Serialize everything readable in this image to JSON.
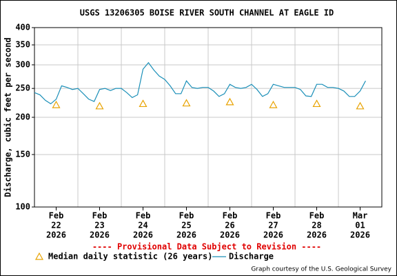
{
  "chart_data": {
    "type": "line",
    "title": "USGS 13206305 BOISE RIVER SOUTH CHANNEL AT EAGLE ID",
    "y_label": "Discharge, cubic feet per second",
    "note": "---- Provisional Data Subject to Revision ----",
    "credit": "Graph courtesy of the U.S. Geological Survey",
    "log_y": true,
    "grid": true,
    "ylim": [
      100,
      400
    ],
    "yticks": [
      100,
      150,
      200,
      250,
      300,
      350,
      400
    ],
    "xlim": [
      "2026-02-21T12:00",
      "2026-03-01T12:00"
    ],
    "xticks": [
      {
        "value": "2026-02-22T00:00",
        "label": [
          "Feb",
          "22",
          "2026"
        ]
      },
      {
        "value": "2026-02-23T00:00",
        "label": [
          "Feb",
          "23",
          "2026"
        ]
      },
      {
        "value": "2026-02-24T00:00",
        "label": [
          "Feb",
          "24",
          "2026"
        ]
      },
      {
        "value": "2026-02-25T00:00",
        "label": [
          "Feb",
          "25",
          "2026"
        ]
      },
      {
        "value": "2026-02-26T00:00",
        "label": [
          "Feb",
          "26",
          "2026"
        ]
      },
      {
        "value": "2026-02-27T00:00",
        "label": [
          "Feb",
          "27",
          "2026"
        ]
      },
      {
        "value": "2026-02-28T00:00",
        "label": [
          "Feb",
          "28",
          "2026"
        ]
      },
      {
        "value": "2026-03-01T00:00",
        "label": [
          "Mar",
          "01",
          "2026"
        ]
      }
    ],
    "xgrid": [
      "2026-02-22T12:00",
      "2026-02-23T12:00",
      "2026-02-24T12:00",
      "2026-02-25T12:00",
      "2026-02-26T12:00",
      "2026-02-27T12:00",
      "2026-02-28T12:00"
    ],
    "series": [
      {
        "name": "Median daily statistic (26 years)",
        "color": "#e8a200",
        "marker": "triangle",
        "x": [
          "2026-02-22T00:00",
          "2026-02-23T00:00",
          "2026-02-24T00:00",
          "2026-02-25T00:00",
          "2026-02-26T00:00",
          "2026-02-27T00:00",
          "2026-02-28T00:00",
          "2026-03-01T00:00"
        ],
        "values": [
          220,
          218,
          222,
          223,
          225,
          220,
          222,
          218
        ]
      },
      {
        "name": "Discharge",
        "color": "#1a8fb8",
        "marker": "line",
        "x": [
          "2026-02-21T12:00",
          "2026-02-21T15:00",
          "2026-02-21T18:00",
          "2026-02-21T21:00",
          "2026-02-22T00:00",
          "2026-02-22T03:00",
          "2026-02-22T06:00",
          "2026-02-22T09:00",
          "2026-02-22T12:00",
          "2026-02-22T15:00",
          "2026-02-22T18:00",
          "2026-02-22T21:00",
          "2026-02-23T00:00",
          "2026-02-23T03:00",
          "2026-02-23T06:00",
          "2026-02-23T09:00",
          "2026-02-23T12:00",
          "2026-02-23T15:00",
          "2026-02-23T18:00",
          "2026-02-23T21:00",
          "2026-02-24T00:00",
          "2026-02-24T03:00",
          "2026-02-24T06:00",
          "2026-02-24T09:00",
          "2026-02-24T12:00",
          "2026-02-24T15:00",
          "2026-02-24T18:00",
          "2026-02-24T21:00",
          "2026-02-25T00:00",
          "2026-02-25T03:00",
          "2026-02-25T06:00",
          "2026-02-25T09:00",
          "2026-02-25T12:00",
          "2026-02-25T15:00",
          "2026-02-25T18:00",
          "2026-02-25T21:00",
          "2026-02-26T00:00",
          "2026-02-26T03:00",
          "2026-02-26T06:00",
          "2026-02-26T09:00",
          "2026-02-26T12:00",
          "2026-02-26T15:00",
          "2026-02-26T18:00",
          "2026-02-26T21:00",
          "2026-02-27T00:00",
          "2026-02-27T03:00",
          "2026-02-27T06:00",
          "2026-02-27T09:00",
          "2026-02-27T12:00",
          "2026-02-27T15:00",
          "2026-02-27T18:00",
          "2026-02-27T21:00",
          "2026-02-28T00:00",
          "2026-02-28T03:00",
          "2026-02-28T06:00",
          "2026-02-28T09:00",
          "2026-02-28T12:00",
          "2026-02-28T15:00",
          "2026-02-28T18:00",
          "2026-02-28T21:00",
          "2026-03-01T00:00",
          "2026-03-01T03:00"
        ],
        "values": [
          242,
          238,
          228,
          222,
          230,
          255,
          252,
          248,
          250,
          240,
          230,
          226,
          248,
          250,
          246,
          250,
          250,
          242,
          233,
          238,
          290,
          305,
          288,
          275,
          268,
          255,
          240,
          240,
          265,
          252,
          250,
          252,
          252,
          245,
          235,
          240,
          258,
          252,
          250,
          252,
          258,
          248,
          235,
          240,
          258,
          255,
          252,
          252,
          252,
          248,
          236,
          235,
          258,
          258,
          252,
          252,
          250,
          245,
          235,
          235,
          245,
          265
        ]
      }
    ]
  }
}
